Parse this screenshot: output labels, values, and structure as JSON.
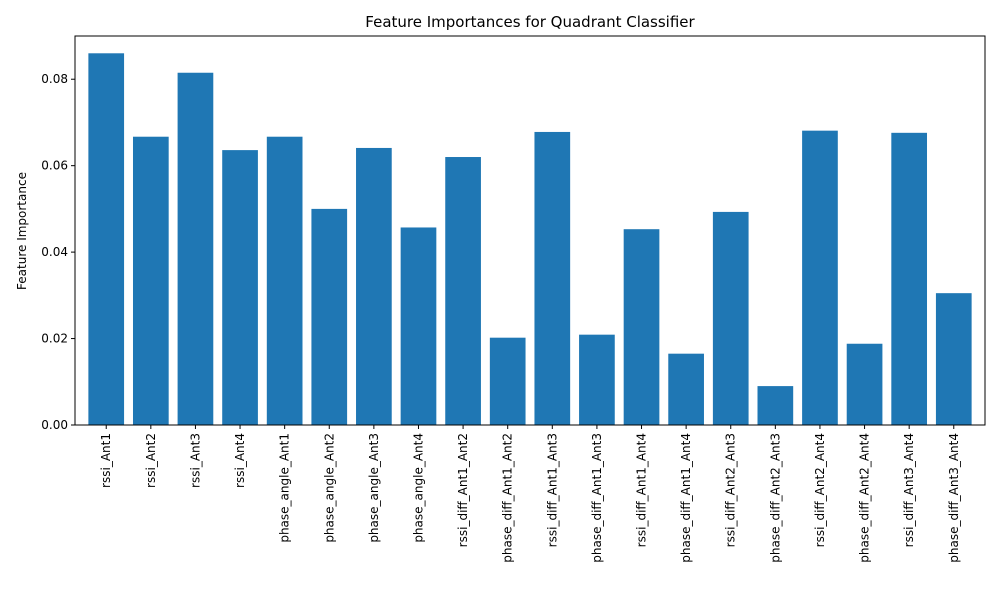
{
  "chart_data": {
    "type": "bar",
    "title": "Feature Importances for Quadrant Classifier",
    "xlabel": "",
    "ylabel": "Feature Importance",
    "categories": [
      "rssi_Ant1",
      "rssi_Ant2",
      "rssi_Ant3",
      "rssi_Ant4",
      "phase_angle_Ant1",
      "phase_angle_Ant2",
      "phase_angle_Ant3",
      "phase_angle_Ant4",
      "rssi_diff_Ant1_Ant2",
      "phase_diff_Ant1_Ant2",
      "rssi_diff_Ant1_Ant3",
      "phase_diff_Ant1_Ant3",
      "rssi_diff_Ant1_Ant4",
      "phase_diff_Ant1_Ant4",
      "rssi_diff_Ant2_Ant3",
      "phase_diff_Ant2_Ant3",
      "rssi_diff_Ant2_Ant4",
      "phase_diff_Ant2_Ant4",
      "rssi_diff_Ant3_Ant4",
      "phase_diff_Ant3_Ant4"
    ],
    "values": [
      0.086,
      0.0667,
      0.0815,
      0.0636,
      0.0667,
      0.05,
      0.0641,
      0.0457,
      0.062,
      0.0202,
      0.0678,
      0.0209,
      0.0453,
      0.0165,
      0.0493,
      0.009,
      0.0681,
      0.0188,
      0.0676,
      0.0305
    ],
    "ylim": [
      0,
      0.09
    ],
    "yticks": [
      0.0,
      0.02,
      0.04,
      0.06,
      0.08
    ],
    "ytick_labels": [
      "0.00",
      "0.02",
      "0.04",
      "0.06",
      "0.08"
    ],
    "grid": false,
    "legend": "none",
    "colors": {
      "bar": "#1f77b4",
      "axis": "#000000",
      "background": "#ffffff"
    }
  }
}
